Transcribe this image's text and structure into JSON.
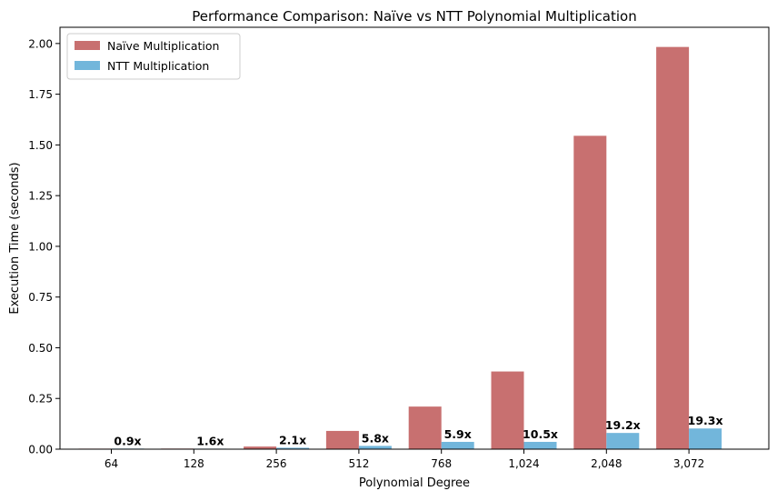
{
  "chart_data": {
    "type": "bar",
    "title": "Performance Comparison: Naïve vs NTT Polynomial Multiplication",
    "xlabel": "Polynomial Degree",
    "ylabel": "Execution Time (seconds)",
    "categories": [
      "64",
      "128",
      "256",
      "512",
      "768",
      "1,024",
      "2,048",
      "3,072"
    ],
    "series": [
      {
        "name": "Naïve Multiplication",
        "color": "#c87070",
        "values": [
          0.002,
          0.003,
          0.013,
          0.09,
          0.21,
          0.383,
          1.545,
          1.983
        ]
      },
      {
        "name": "NTT Multiplication",
        "color": "#72b6db",
        "values": [
          0.003,
          0.002,
          0.007,
          0.016,
          0.036,
          0.036,
          0.08,
          0.102
        ]
      }
    ],
    "speedup_labels": [
      "0.9x",
      "1.6x",
      "2.1x",
      "5.8x",
      "5.9x",
      "10.5x",
      "19.2x",
      "19.3x"
    ],
    "ylim": [
      0,
      2.08
    ],
    "yticks": [
      "0.00",
      "0.25",
      "0.50",
      "0.75",
      "1.00",
      "1.25",
      "1.50",
      "1.75",
      "2.00"
    ],
    "ytick_values": [
      0,
      0.25,
      0.5,
      0.75,
      1.0,
      1.25,
      1.5,
      1.75,
      2.0
    ],
    "grid": false,
    "legend_position": "top-left"
  }
}
